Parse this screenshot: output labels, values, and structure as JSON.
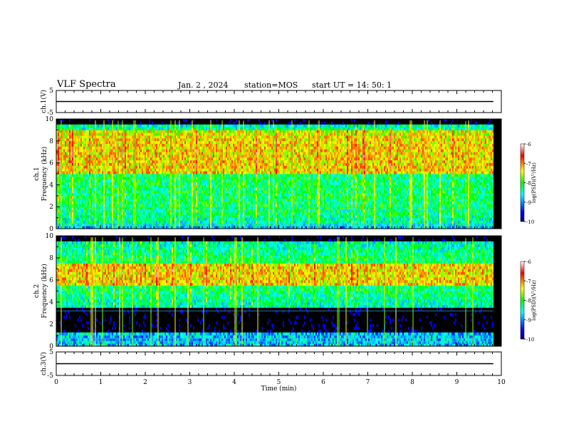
{
  "header": {
    "title": "VLF Spectra",
    "date": "Jan. 2 , 2024",
    "station": "station=MOS",
    "start": "start UT =  14: 50: 1"
  },
  "chart_data": [
    {
      "type": "line",
      "panel": "ch1-voltage",
      "ylabel": "ch.1(V)",
      "ylim": [
        -5,
        5
      ],
      "ytick_labels": [
        "5",
        "-5"
      ],
      "xlim": [
        0,
        10
      ],
      "series": [
        {
          "x": [
            0,
            9.82
          ],
          "values": [
            0,
            0
          ]
        }
      ]
    },
    {
      "type": "heatmap",
      "panel": "ch1-spectrogram",
      "ylabel": "ch.1 Frequency (kHz)",
      "ylim": [
        0,
        10
      ],
      "ytick_labels": [
        "0",
        "2",
        "4",
        "6",
        "8",
        "10"
      ],
      "xlim": [
        0,
        10
      ],
      "data_x_extent": [
        0,
        9.82
      ],
      "colorbar": {
        "label": "log(PSD)(V²/Hz)",
        "range": [
          -10,
          -6
        ],
        "tick_labels": [
          "-6",
          "-7",
          "-8",
          "-9",
          "-10"
        ]
      },
      "band_kHz": [
        0.3,
        9.5
      ],
      "peak_band_kHz": [
        5,
        9
      ],
      "lines_kHz": [
        0.4,
        1.6,
        1.9
      ]
    },
    {
      "type": "heatmap",
      "panel": "ch2-spectrogram",
      "ylabel": "ch.2 Frequency (kHz)",
      "ylim": [
        0,
        10
      ],
      "ytick_labels": [
        "0",
        "2",
        "4",
        "6",
        "8",
        "10"
      ],
      "xlim": [
        0,
        10
      ],
      "data_x_extent": [
        0,
        9.82
      ],
      "colorbar": {
        "label": "log(PSD)(V²/Hz)",
        "range": [
          -10,
          -6
        ],
        "tick_labels": [
          "-6",
          "-7",
          "-8",
          "-9",
          "-10"
        ]
      },
      "band_kHz": [
        3.5,
        9.5
      ],
      "peak_band_kHz": [
        5.5,
        7.5
      ],
      "lines_kHz": [
        0.4,
        0.7,
        3.2
      ]
    },
    {
      "type": "line",
      "panel": "ch3-voltage",
      "ylabel": "ch.3(V)",
      "ylim": [
        -5,
        5
      ],
      "ytick_labels": [
        "5",
        "-5"
      ],
      "xlim": [
        0,
        10
      ],
      "series": [
        {
          "x": [
            0,
            9.82
          ],
          "values": [
            0,
            0
          ]
        }
      ]
    }
  ],
  "x_axis": {
    "label": "Time (min)",
    "tick_labels": [
      "0",
      "1",
      "2",
      "3",
      "4",
      "5",
      "6",
      "7",
      "8",
      "9",
      "10"
    ]
  },
  "colors": {
    "background": "#ffffff",
    "spectrogram_background": "#000000",
    "frame": "#000000"
  }
}
